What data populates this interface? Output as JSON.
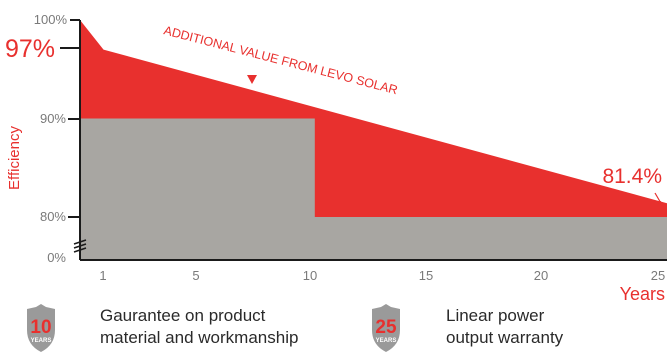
{
  "colors": {
    "accent": "#e8302e",
    "base_fill": "#a8a6a2",
    "axis": "#1a1a1a",
    "tick_text": "#7a7a7a",
    "badge_shield": "#9a9a9a",
    "badge_text": "#e8302e"
  },
  "chart_data": {
    "type": "area",
    "ylabel": "Efficiency",
    "xlabel": "Years",
    "x_ticks": [
      "1",
      "5",
      "10",
      "15",
      "20",
      "25"
    ],
    "y_ticks": [
      "100%",
      "90%",
      "80%",
      "0%"
    ],
    "y_axis_break": true,
    "xlim": [
      0,
      25
    ],
    "ylim": [
      0,
      100
    ],
    "series": [
      {
        "name": "",
        "fill": "#e8302e",
        "points": [
          [
            0,
            100
          ],
          [
            1,
            97
          ],
          [
            25,
            81.4
          ]
        ]
      },
      {
        "name": "",
        "fill": "#a8a6a2",
        "points": [
          [
            0,
            90
          ],
          [
            10,
            90
          ],
          [
            10,
            80
          ],
          [
            25,
            80
          ]
        ]
      }
    ],
    "annotations": [
      {
        "text": "97%",
        "x": 1,
        "y": 97
      },
      {
        "text": "81.4%",
        "x": 25,
        "y": 81.4
      },
      {
        "text": "ADDITIONAL VALUE FROM LEVO SOLAR"
      }
    ]
  },
  "badges": [
    {
      "number": "10",
      "unit": "YEARS",
      "line1": "Gaurantee on product",
      "line2": "material and workmanship"
    },
    {
      "number": "25",
      "unit": "YEARS",
      "line1": "Linear power",
      "line2": "output warranty"
    }
  ]
}
